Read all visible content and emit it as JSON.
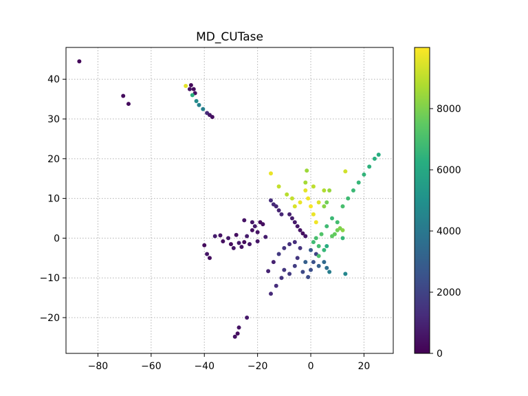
{
  "chart_data": {
    "type": "scatter",
    "title": "MD_CUTase",
    "xlabel": "",
    "ylabel": "",
    "xlim": [
      -92,
      31
    ],
    "ylim": [
      -29,
      48
    ],
    "x_ticks": [
      -80,
      -60,
      -40,
      -20,
      0,
      20
    ],
    "y_ticks": [
      -20,
      -10,
      0,
      10,
      20,
      30,
      40
    ],
    "x_tick_labels": [
      "−80",
      "−60",
      "−40",
      "−20",
      "0",
      "20"
    ],
    "y_tick_labels": [
      "−20",
      "−10",
      "0",
      "10",
      "20",
      "30",
      "40"
    ],
    "grid": true,
    "colormap": "viridis",
    "colorbar": {
      "range": [
        0,
        10000
      ],
      "ticks": [
        0,
        2000,
        4000,
        6000,
        8000
      ],
      "tick_labels": [
        "0",
        "2000",
        "4000",
        "6000",
        "8000"
      ]
    },
    "points": [
      {
        "x": -87,
        "y": 44.5,
        "c": 200
      },
      {
        "x": -70.5,
        "y": 35.8,
        "c": 300
      },
      {
        "x": -68.5,
        "y": 33.8,
        "c": 300
      },
      {
        "x": -47,
        "y": 38.3,
        "c": 9600
      },
      {
        "x": -45.5,
        "y": 37.5,
        "c": 500
      },
      {
        "x": -45,
        "y": 38.5,
        "c": 200
      },
      {
        "x": -44,
        "y": 37.5,
        "c": 300
      },
      {
        "x": -43.5,
        "y": 36.5,
        "c": 400
      },
      {
        "x": -44.5,
        "y": 36,
        "c": 6300
      },
      {
        "x": -43,
        "y": 34.5,
        "c": 4800
      },
      {
        "x": -42,
        "y": 33.5,
        "c": 4400
      },
      {
        "x": -40.5,
        "y": 32.5,
        "c": 4300
      },
      {
        "x": -39,
        "y": 31.5,
        "c": 1200
      },
      {
        "x": -38,
        "y": 31,
        "c": 600
      },
      {
        "x": -37,
        "y": 30.5,
        "c": 400
      },
      {
        "x": -28.5,
        "y": -24.8,
        "c": 500
      },
      {
        "x": -27.5,
        "y": -24,
        "c": 400
      },
      {
        "x": -27,
        "y": -22.5,
        "c": 500
      },
      {
        "x": -24,
        "y": -20,
        "c": 700
      },
      {
        "x": -40,
        "y": -1.8,
        "c": 300
      },
      {
        "x": -39,
        "y": -4,
        "c": 600
      },
      {
        "x": -38,
        "y": -5,
        "c": 400
      },
      {
        "x": -36,
        "y": 0.5,
        "c": 800
      },
      {
        "x": -34,
        "y": 0.7,
        "c": 500
      },
      {
        "x": -33,
        "y": -0.8,
        "c": 400
      },
      {
        "x": -31,
        "y": 0,
        "c": 700
      },
      {
        "x": -30,
        "y": -1.5,
        "c": 300
      },
      {
        "x": -29,
        "y": -2.5,
        "c": 600
      },
      {
        "x": -28,
        "y": 0.8,
        "c": 400
      },
      {
        "x": -27,
        "y": -1.2,
        "c": 700
      },
      {
        "x": -26,
        "y": -2.2,
        "c": 500
      },
      {
        "x": -25,
        "y": -1,
        "c": 300
      },
      {
        "x": -24,
        "y": 0.5,
        "c": 800
      },
      {
        "x": -23,
        "y": -1.5,
        "c": 600
      },
      {
        "x": -22,
        "y": 2,
        "c": 400
      },
      {
        "x": -21,
        "y": 3,
        "c": 700
      },
      {
        "x": -20,
        "y": 1.5,
        "c": 500
      },
      {
        "x": -20,
        "y": -0.8,
        "c": 600
      },
      {
        "x": -19,
        "y": 4,
        "c": 300
      },
      {
        "x": -18,
        "y": 3.5,
        "c": 400
      },
      {
        "x": -17,
        "y": 0.3,
        "c": 800
      },
      {
        "x": -25,
        "y": 4.5,
        "c": 500
      },
      {
        "x": -22,
        "y": 4,
        "c": 600
      },
      {
        "x": -15,
        "y": 9.5,
        "c": 1300
      },
      {
        "x": -14,
        "y": 8.5,
        "c": 1200
      },
      {
        "x": -13,
        "y": 8,
        "c": 1100
      },
      {
        "x": -12,
        "y": 7,
        "c": 1000
      },
      {
        "x": -11,
        "y": 6,
        "c": 1100
      },
      {
        "x": -15,
        "y": 16.3,
        "c": 9700
      },
      {
        "x": -12,
        "y": 13,
        "c": 9100
      },
      {
        "x": -8,
        "y": 6,
        "c": 900
      },
      {
        "x": -7,
        "y": 5,
        "c": 800
      },
      {
        "x": -6,
        "y": 4,
        "c": 700
      },
      {
        "x": -5,
        "y": 3,
        "c": 600
      },
      {
        "x": -4,
        "y": 2,
        "c": 500
      },
      {
        "x": -3,
        "y": 1.2,
        "c": 400
      },
      {
        "x": -2,
        "y": 0.5,
        "c": 600
      },
      {
        "x": -16,
        "y": -8.3,
        "c": 1000
      },
      {
        "x": -15,
        "y": -14,
        "c": 1200
      },
      {
        "x": -13,
        "y": -12,
        "c": 1300
      },
      {
        "x": -11,
        "y": -10,
        "c": 1500
      },
      {
        "x": -10,
        "y": -8,
        "c": 1600
      },
      {
        "x": -12,
        "y": -4,
        "c": 1700
      },
      {
        "x": -10,
        "y": -2.5,
        "c": 1500
      },
      {
        "x": -8,
        "y": -1.5,
        "c": 1400
      },
      {
        "x": -6,
        "y": -1,
        "c": 1300
      },
      {
        "x": -14,
        "y": -6,
        "c": 900
      },
      {
        "x": -8,
        "y": -9,
        "c": 1700
      },
      {
        "x": -6,
        "y": -7,
        "c": 1800
      },
      {
        "x": -5,
        "y": -5,
        "c": 1600
      },
      {
        "x": -4,
        "y": -2.5,
        "c": 1500
      },
      {
        "x": -3,
        "y": -8.5,
        "c": 2200
      },
      {
        "x": 0,
        "y": -8,
        "c": 2400
      },
      {
        "x": 1,
        "y": -6,
        "c": 2500
      },
      {
        "x": 2,
        "y": -4,
        "c": 2000
      },
      {
        "x": 0,
        "y": -3,
        "c": 2800
      },
      {
        "x": -2,
        "y": -6,
        "c": 3000
      },
      {
        "x": -1,
        "y": -9.8,
        "c": 2300
      },
      {
        "x": 3,
        "y": -7,
        "c": 3000
      },
      {
        "x": 5,
        "y": -6,
        "c": 3400
      },
      {
        "x": 6,
        "y": -7.5,
        "c": 3600
      },
      {
        "x": 7,
        "y": -8.5,
        "c": 4200
      },
      {
        "x": 13,
        "y": -9,
        "c": 4600
      },
      {
        "x": 1,
        "y": -1,
        "c": 6800
      },
      {
        "x": 2,
        "y": 0,
        "c": 7000
      },
      {
        "x": 3,
        "y": -2,
        "c": 6900
      },
      {
        "x": 4,
        "y": 1,
        "c": 7200
      },
      {
        "x": 5,
        "y": -3,
        "c": 6600
      },
      {
        "x": 3,
        "y": -4.5,
        "c": 7100
      },
      {
        "x": 6,
        "y": 3,
        "c": 6800
      },
      {
        "x": 8,
        "y": 5,
        "c": 6700
      },
      {
        "x": 9,
        "y": 1,
        "c": 7600
      },
      {
        "x": 10,
        "y": 2,
        "c": 7800
      },
      {
        "x": 11,
        "y": 2.5,
        "c": 8000
      },
      {
        "x": 12,
        "y": 2,
        "c": 8200
      },
      {
        "x": 8,
        "y": 0.5,
        "c": 7500
      },
      {
        "x": 10,
        "y": 4,
        "c": 6900
      },
      {
        "x": 12,
        "y": 8,
        "c": 7000
      },
      {
        "x": 14,
        "y": 10,
        "c": 6800
      },
      {
        "x": 16,
        "y": 12,
        "c": 6700
      },
      {
        "x": 18,
        "y": 14,
        "c": 6600
      },
      {
        "x": 20,
        "y": 16,
        "c": 6500
      },
      {
        "x": 22,
        "y": 18,
        "c": 6400
      },
      {
        "x": 24,
        "y": 20,
        "c": 6300
      },
      {
        "x": 25.5,
        "y": 21,
        "c": 6200
      },
      {
        "x": 13,
        "y": 16.8,
        "c": 9300
      },
      {
        "x": 12,
        "y": 0,
        "c": 6600
      },
      {
        "x": 6,
        "y": -2,
        "c": 6200
      },
      {
        "x": -2,
        "y": 12,
        "c": 9600
      },
      {
        "x": -1,
        "y": 10,
        "c": 9800
      },
      {
        "x": 0,
        "y": 8,
        "c": 9900
      },
      {
        "x": 1,
        "y": 6,
        "c": 9700
      },
      {
        "x": 2,
        "y": 4,
        "c": 9800
      },
      {
        "x": 3,
        "y": 9,
        "c": 9500
      },
      {
        "x": -4,
        "y": 9,
        "c": 9700
      },
      {
        "x": -6,
        "y": 8,
        "c": 9400
      },
      {
        "x": -7,
        "y": 10,
        "c": 9100
      },
      {
        "x": -9,
        "y": 11,
        "c": 8900
      },
      {
        "x": -2,
        "y": 14,
        "c": 8600
      },
      {
        "x": -1.5,
        "y": 17,
        "c": 8500
      },
      {
        "x": 1,
        "y": 13,
        "c": 9000
      },
      {
        "x": 5,
        "y": 12,
        "c": 8800
      },
      {
        "x": 7,
        "y": 12,
        "c": 8400
      },
      {
        "x": 5,
        "y": 8,
        "c": 8200
      },
      {
        "x": 6,
        "y": 9,
        "c": 7800
      }
    ]
  }
}
